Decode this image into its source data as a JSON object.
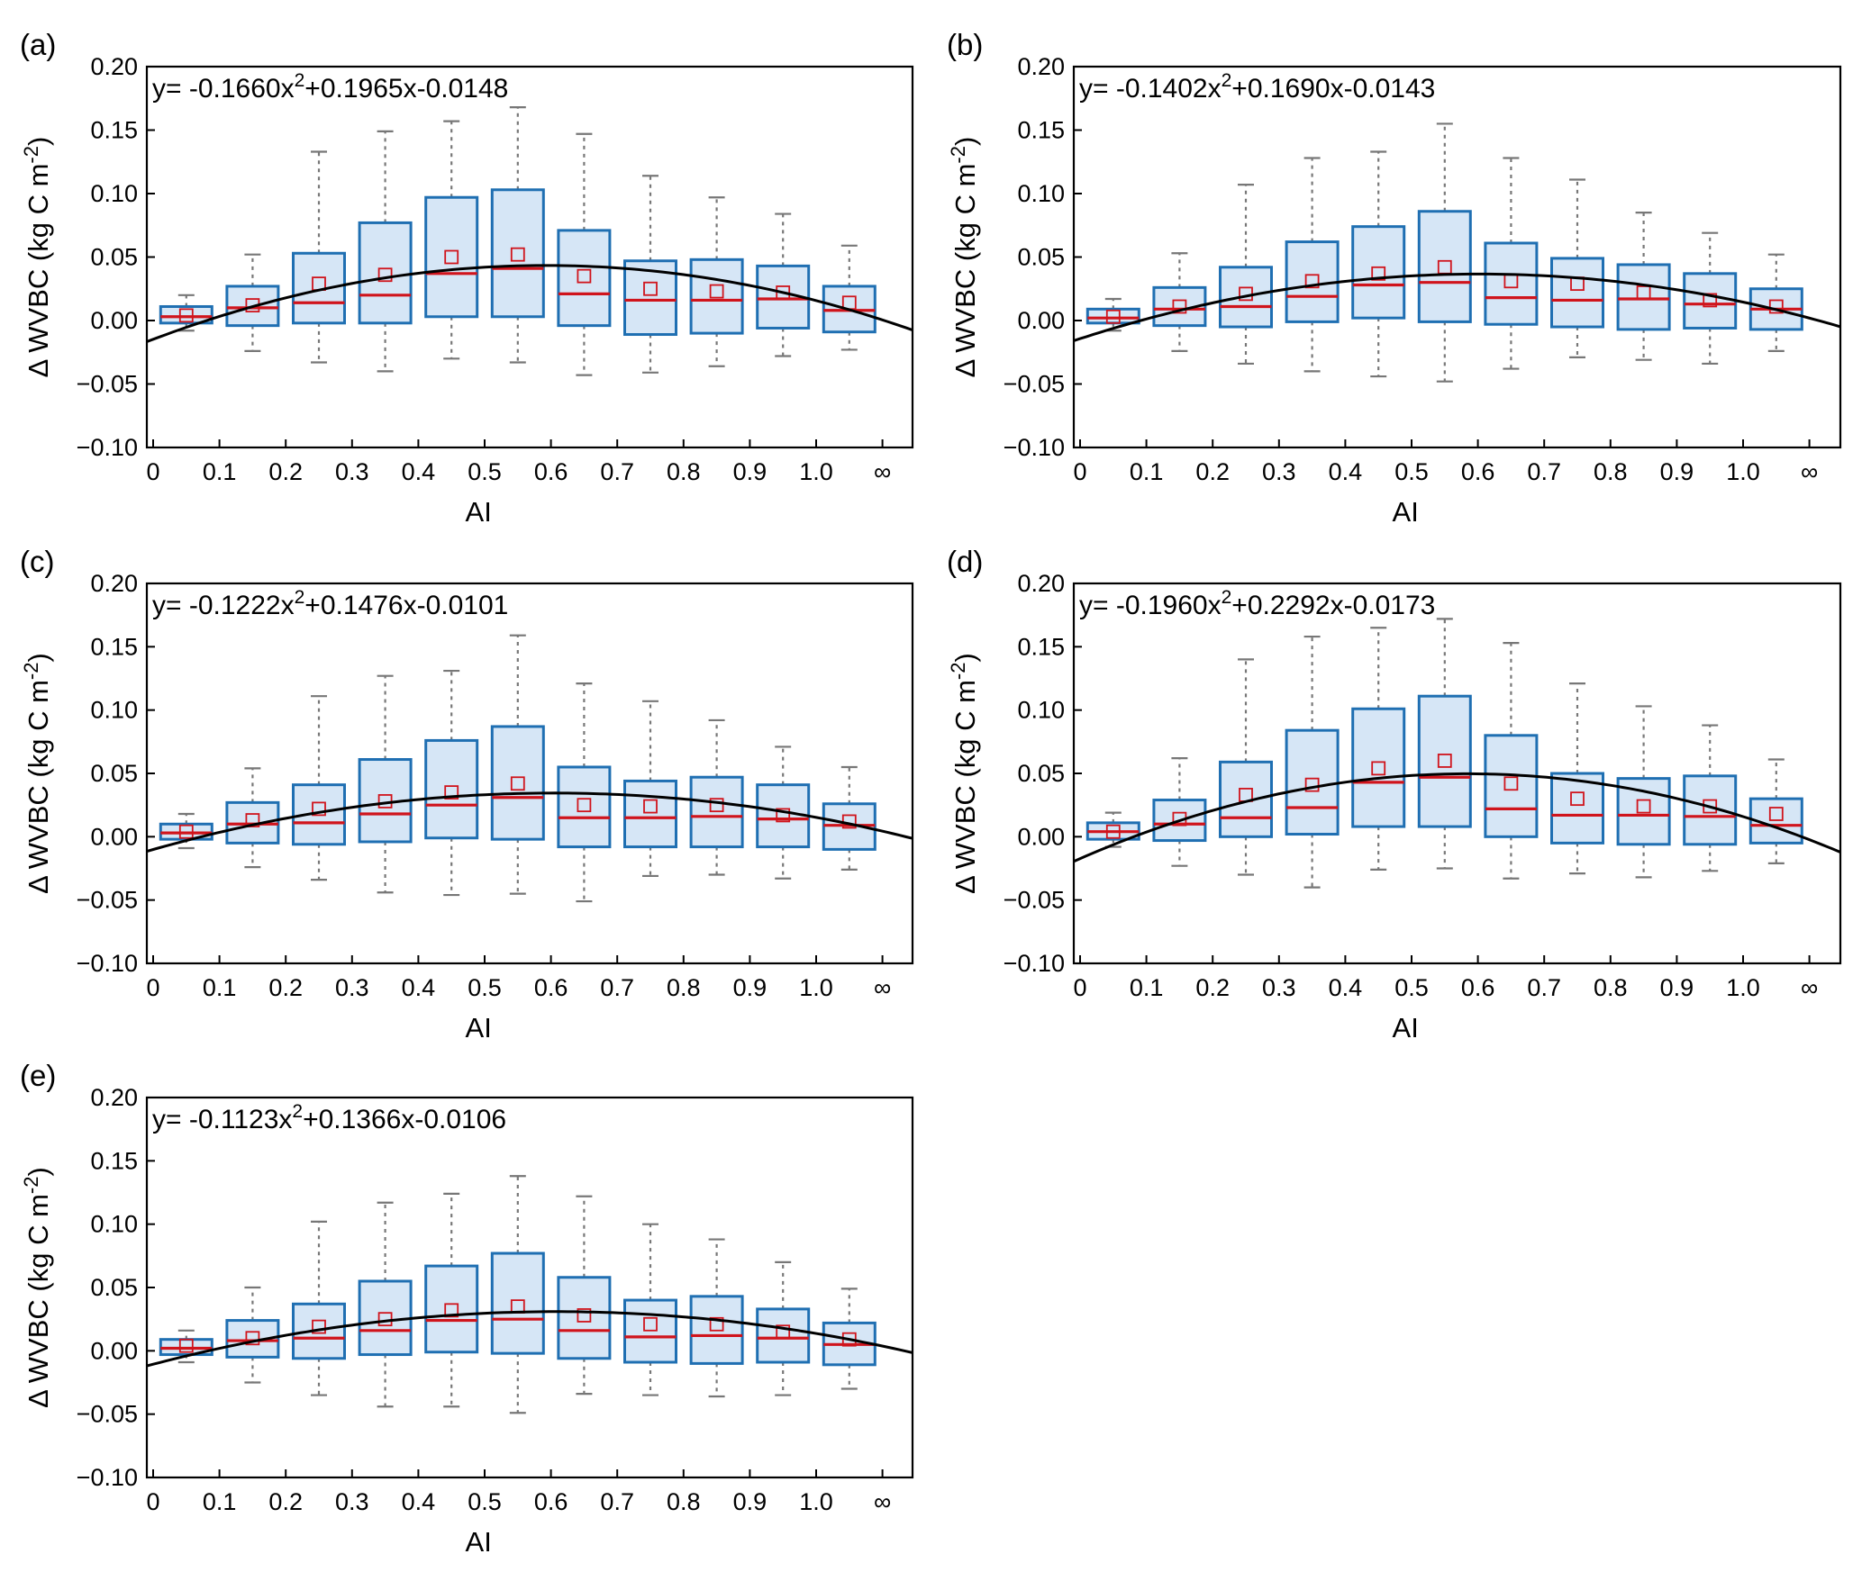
{
  "figure": {
    "x_label": "AI",
    "y_label": "Δ WVBC (kg C m",
    "y_label_exp": "-2",
    "y_label_close": ")",
    "x_tick_labels": [
      "0",
      "0.1",
      "0.2",
      "0.3",
      "0.4",
      "0.5",
      "0.6",
      "0.7",
      "0.8",
      "0.9",
      "1.0",
      "∞"
    ],
    "y_tick_labels": [
      "0.20",
      "0.15",
      "0.10",
      "0.05",
      "0.00",
      "−0.05",
      "−0.10"
    ]
  },
  "colors": {
    "box_fill": "#d6e6f6",
    "box_edge": "#1f6fb2",
    "median": "#d0141c",
    "mean": "#d0141c",
    "whisker": "#777777",
    "fit": "#000000"
  },
  "chart_data": [
    {
      "type": "boxplot",
      "panel": "(a)",
      "equation": {
        "prefix": "y= -0.1660x",
        "exp": "2",
        "suffix": "+0.1965x-0.0148"
      },
      "fit": {
        "a": -0.166,
        "b": 0.1965,
        "c": -0.0148
      },
      "xlabel": "AI",
      "ylabel": "Δ WVBC (kg C m-2)",
      "xlim": [
        0,
        1.15
      ],
      "ylim": [
        -0.1,
        0.2
      ],
      "categories": [
        "0-0.1",
        "0.1-0.2",
        "0.2-0.3",
        "0.3-0.4",
        "0.4-0.5",
        "0.5-0.6",
        "0.6-0.7",
        "0.7-0.8",
        "0.8-0.9",
        "0.9-1.0",
        "1.0-∞"
      ],
      "boxes": [
        {
          "lo": -0.008,
          "q1": -0.002,
          "med": 0.003,
          "q3": 0.011,
          "hi": 0.02,
          "mean": 0.004
        },
        {
          "lo": -0.024,
          "q1": -0.004,
          "med": 0.01,
          "q3": 0.027,
          "hi": 0.052,
          "mean": 0.012
        },
        {
          "lo": -0.033,
          "q1": -0.002,
          "med": 0.014,
          "q3": 0.053,
          "hi": 0.133,
          "mean": 0.029
        },
        {
          "lo": -0.04,
          "q1": -0.002,
          "med": 0.02,
          "q3": 0.077,
          "hi": 0.149,
          "mean": 0.036
        },
        {
          "lo": -0.03,
          "q1": 0.003,
          "med": 0.037,
          "q3": 0.097,
          "hi": 0.157,
          "mean": 0.05
        },
        {
          "lo": -0.033,
          "q1": 0.003,
          "med": 0.041,
          "q3": 0.103,
          "hi": 0.168,
          "mean": 0.052
        },
        {
          "lo": -0.043,
          "q1": -0.004,
          "med": 0.021,
          "q3": 0.071,
          "hi": 0.147,
          "mean": 0.035
        },
        {
          "lo": -0.041,
          "q1": -0.011,
          "med": 0.016,
          "q3": 0.047,
          "hi": 0.114,
          "mean": 0.025
        },
        {
          "lo": -0.036,
          "q1": -0.01,
          "med": 0.016,
          "q3": 0.048,
          "hi": 0.097,
          "mean": 0.023
        },
        {
          "lo": -0.028,
          "q1": -0.006,
          "med": 0.017,
          "q3": 0.043,
          "hi": 0.084,
          "mean": 0.022
        },
        {
          "lo": -0.023,
          "q1": -0.009,
          "med": 0.008,
          "q3": 0.027,
          "hi": 0.059,
          "mean": 0.014
        }
      ]
    },
    {
      "type": "boxplot",
      "panel": "(b)",
      "equation": {
        "prefix": "y= -0.1402x",
        "exp": "2",
        "suffix": "+0.1690x-0.0143"
      },
      "fit": {
        "a": -0.1402,
        "b": 0.169,
        "c": -0.0143
      },
      "xlabel": "AI",
      "ylabel": "Δ WVBC (kg C m-2)",
      "xlim": [
        0,
        1.15
      ],
      "ylim": [
        -0.1,
        0.2
      ],
      "categories": [
        "0-0.1",
        "0.1-0.2",
        "0.2-0.3",
        "0.3-0.4",
        "0.4-0.5",
        "0.5-0.6",
        "0.6-0.7",
        "0.7-0.8",
        "0.8-0.9",
        "0.9-1.0",
        "1.0-∞"
      ],
      "boxes": [
        {
          "lo": -0.008,
          "q1": -0.002,
          "med": 0.002,
          "q3": 0.009,
          "hi": 0.017,
          "mean": 0.003
        },
        {
          "lo": -0.024,
          "q1": -0.004,
          "med": 0.009,
          "q3": 0.026,
          "hi": 0.053,
          "mean": 0.011
        },
        {
          "lo": -0.034,
          "q1": -0.005,
          "med": 0.011,
          "q3": 0.042,
          "hi": 0.107,
          "mean": 0.021
        },
        {
          "lo": -0.04,
          "q1": -0.001,
          "med": 0.019,
          "q3": 0.062,
          "hi": 0.128,
          "mean": 0.031
        },
        {
          "lo": -0.044,
          "q1": 0.002,
          "med": 0.028,
          "q3": 0.074,
          "hi": 0.133,
          "mean": 0.037
        },
        {
          "lo": -0.048,
          "q1": -0.001,
          "med": 0.03,
          "q3": 0.086,
          "hi": 0.155,
          "mean": 0.042
        },
        {
          "lo": -0.038,
          "q1": -0.003,
          "med": 0.018,
          "q3": 0.061,
          "hi": 0.128,
          "mean": 0.031
        },
        {
          "lo": -0.029,
          "q1": -0.005,
          "med": 0.016,
          "q3": 0.049,
          "hi": 0.111,
          "mean": 0.029
        },
        {
          "lo": -0.031,
          "q1": -0.007,
          "med": 0.017,
          "q3": 0.044,
          "hi": 0.085,
          "mean": 0.022
        },
        {
          "lo": -0.034,
          "q1": -0.006,
          "med": 0.013,
          "q3": 0.037,
          "hi": 0.069,
          "mean": 0.016
        },
        {
          "lo": -0.024,
          "q1": -0.007,
          "med": 0.009,
          "q3": 0.025,
          "hi": 0.052,
          "mean": 0.011
        }
      ]
    },
    {
      "type": "boxplot",
      "panel": "(c)",
      "equation": {
        "prefix": "y= -0.1222x",
        "exp": "2",
        "suffix": "+0.1476x-0.0101"
      },
      "fit": {
        "a": -0.1222,
        "b": 0.1476,
        "c": -0.0101
      },
      "xlabel": "AI",
      "ylabel": "Δ WVBC (kg C m-2)",
      "xlim": [
        0,
        1.15
      ],
      "ylim": [
        -0.1,
        0.2
      ],
      "categories": [
        "0-0.1",
        "0.1-0.2",
        "0.2-0.3",
        "0.3-0.4",
        "0.4-0.5",
        "0.5-0.6",
        "0.6-0.7",
        "0.7-0.8",
        "0.8-0.9",
        "0.9-1.0",
        "1.0-∞"
      ],
      "boxes": [
        {
          "lo": -0.009,
          "q1": -0.002,
          "med": 0.003,
          "q3": 0.01,
          "hi": 0.018,
          "mean": 0.004
        },
        {
          "lo": -0.024,
          "q1": -0.005,
          "med": 0.01,
          "q3": 0.027,
          "hi": 0.054,
          "mean": 0.013
        },
        {
          "lo": -0.034,
          "q1": -0.006,
          "med": 0.011,
          "q3": 0.041,
          "hi": 0.111,
          "mean": 0.022
        },
        {
          "lo": -0.044,
          "q1": -0.004,
          "med": 0.018,
          "q3": 0.061,
          "hi": 0.127,
          "mean": 0.028
        },
        {
          "lo": -0.046,
          "q1": -0.001,
          "med": 0.025,
          "q3": 0.076,
          "hi": 0.131,
          "mean": 0.035
        },
        {
          "lo": -0.045,
          "q1": -0.002,
          "med": 0.031,
          "q3": 0.087,
          "hi": 0.159,
          "mean": 0.042
        },
        {
          "lo": -0.051,
          "q1": -0.008,
          "med": 0.015,
          "q3": 0.055,
          "hi": 0.121,
          "mean": 0.025
        },
        {
          "lo": -0.031,
          "q1": -0.008,
          "med": 0.015,
          "q3": 0.044,
          "hi": 0.107,
          "mean": 0.024
        },
        {
          "lo": -0.03,
          "q1": -0.008,
          "med": 0.016,
          "q3": 0.047,
          "hi": 0.092,
          "mean": 0.025
        },
        {
          "lo": -0.033,
          "q1": -0.008,
          "med": 0.014,
          "q3": 0.041,
          "hi": 0.071,
          "mean": 0.017
        },
        {
          "lo": -0.026,
          "q1": -0.01,
          "med": 0.009,
          "q3": 0.026,
          "hi": 0.055,
          "mean": 0.012
        }
      ]
    },
    {
      "type": "boxplot",
      "panel": "(d)",
      "equation": {
        "prefix": "y= -0.1960x",
        "exp": "2",
        "suffix": "+0.2292x-0.0173"
      },
      "fit": {
        "a": -0.196,
        "b": 0.2292,
        "c": -0.0173
      },
      "xlabel": "AI",
      "ylabel": "Δ WVBC (kg C m-2)",
      "xlim": [
        0,
        1.15
      ],
      "ylim": [
        -0.1,
        0.2
      ],
      "categories": [
        "0-0.1",
        "0.1-0.2",
        "0.2-0.3",
        "0.3-0.4",
        "0.4-0.5",
        "0.5-0.6",
        "0.6-0.7",
        "0.7-0.8",
        "0.8-0.9",
        "0.9-1.0",
        "1.0-∞"
      ],
      "boxes": [
        {
          "lo": -0.008,
          "q1": -0.002,
          "med": 0.004,
          "q3": 0.011,
          "hi": 0.019,
          "mean": 0.004
        },
        {
          "lo": -0.023,
          "q1": -0.003,
          "med": 0.01,
          "q3": 0.029,
          "hi": 0.062,
          "mean": 0.014
        },
        {
          "lo": -0.03,
          "q1": 0.0,
          "med": 0.015,
          "q3": 0.059,
          "hi": 0.14,
          "mean": 0.033
        },
        {
          "lo": -0.04,
          "q1": 0.002,
          "med": 0.023,
          "q3": 0.084,
          "hi": 0.158,
          "mean": 0.041
        },
        {
          "lo": -0.026,
          "q1": 0.008,
          "med": 0.043,
          "q3": 0.101,
          "hi": 0.165,
          "mean": 0.054
        },
        {
          "lo": -0.025,
          "q1": 0.008,
          "med": 0.047,
          "q3": 0.111,
          "hi": 0.172,
          "mean": 0.06
        },
        {
          "lo": -0.033,
          "q1": 0.0,
          "med": 0.022,
          "q3": 0.08,
          "hi": 0.153,
          "mean": 0.042
        },
        {
          "lo": -0.029,
          "q1": -0.005,
          "med": 0.017,
          "q3": 0.05,
          "hi": 0.121,
          "mean": 0.03
        },
        {
          "lo": -0.032,
          "q1": -0.006,
          "med": 0.017,
          "q3": 0.046,
          "hi": 0.103,
          "mean": 0.024
        },
        {
          "lo": -0.027,
          "q1": -0.006,
          "med": 0.016,
          "q3": 0.048,
          "hi": 0.088,
          "mean": 0.024
        },
        {
          "lo": -0.021,
          "q1": -0.005,
          "med": 0.009,
          "q3": 0.03,
          "hi": 0.061,
          "mean": 0.018
        }
      ]
    },
    {
      "type": "boxplot",
      "panel": "(e)",
      "equation": {
        "prefix": "y= -0.1123x",
        "exp": "2",
        "suffix": "+0.1366x-0.0106"
      },
      "fit": {
        "a": -0.1123,
        "b": 0.1366,
        "c": -0.0106
      },
      "xlabel": "AI",
      "ylabel": "Δ WVBC (kg C m-2)",
      "xlim": [
        0,
        1.15
      ],
      "ylim": [
        -0.1,
        0.2
      ],
      "categories": [
        "0-0.1",
        "0.1-0.2",
        "0.2-0.3",
        "0.3-0.4",
        "0.4-0.5",
        "0.5-0.6",
        "0.6-0.7",
        "0.7-0.8",
        "0.8-0.9",
        "0.9-1.0",
        "1.0-∞"
      ],
      "boxes": [
        {
          "lo": -0.009,
          "q1": -0.003,
          "med": 0.002,
          "q3": 0.009,
          "hi": 0.016,
          "mean": 0.004
        },
        {
          "lo": -0.025,
          "q1": -0.005,
          "med": 0.008,
          "q3": 0.024,
          "hi": 0.05,
          "mean": 0.01
        },
        {
          "lo": -0.035,
          "q1": -0.006,
          "med": 0.01,
          "q3": 0.037,
          "hi": 0.102,
          "mean": 0.019
        },
        {
          "lo": -0.044,
          "q1": -0.003,
          "med": 0.016,
          "q3": 0.055,
          "hi": 0.117,
          "mean": 0.025
        },
        {
          "lo": -0.044,
          "q1": -0.001,
          "med": 0.024,
          "q3": 0.067,
          "hi": 0.124,
          "mean": 0.032
        },
        {
          "lo": -0.049,
          "q1": -0.002,
          "med": 0.025,
          "q3": 0.077,
          "hi": 0.138,
          "mean": 0.035
        },
        {
          "lo": -0.034,
          "q1": -0.006,
          "med": 0.016,
          "q3": 0.058,
          "hi": 0.122,
          "mean": 0.028
        },
        {
          "lo": -0.035,
          "q1": -0.009,
          "med": 0.011,
          "q3": 0.04,
          "hi": 0.1,
          "mean": 0.021
        },
        {
          "lo": -0.036,
          "q1": -0.01,
          "med": 0.012,
          "q3": 0.043,
          "hi": 0.088,
          "mean": 0.021
        },
        {
          "lo": -0.035,
          "q1": -0.009,
          "med": 0.01,
          "q3": 0.033,
          "hi": 0.07,
          "mean": 0.015
        },
        {
          "lo": -0.03,
          "q1": -0.011,
          "med": 0.005,
          "q3": 0.022,
          "hi": 0.049,
          "mean": 0.009
        }
      ]
    }
  ]
}
